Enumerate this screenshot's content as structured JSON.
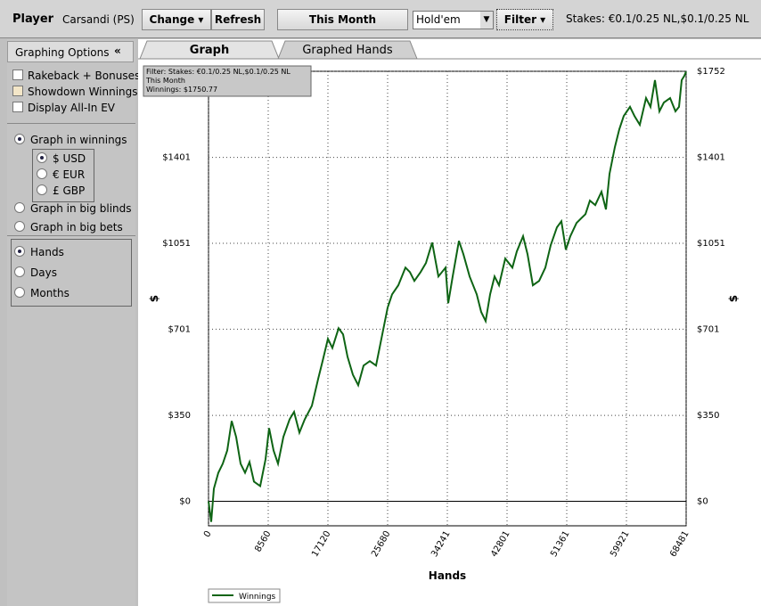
{
  "toolbar": {
    "player_label": "Player",
    "player_name": "Carsandi (PS)",
    "buttons": [
      "Change",
      "Refresh",
      "This Month"
    ],
    "game": "Hold'em",
    "filter": "Filter",
    "stakes": "Stakes: €0.1/0.25 NL,$0.1/0.25 NL"
  },
  "sidebar": {
    "title": "Graphing Options",
    "collapse": "«",
    "checkboxes": [
      "Rakeback + Bonuses",
      "Showdown Winnings",
      "Display All-In EV"
    ],
    "units": {
      "options": [
        "Graph in winnings",
        "Graph in big blinds",
        "Graph in big bets"
      ],
      "selected": 0
    },
    "currency": {
      "options": [
        "$ USD",
        "€ EUR",
        "£ GBP"
      ],
      "selected": 0
    },
    "axis": {
      "options": [
        "Hands",
        "Days",
        "Months"
      ],
      "selected": 0
    }
  },
  "tabs": {
    "items": [
      "Graph",
      "Graphed Hands"
    ],
    "selected": 0
  },
  "chart_data": {
    "type": "line",
    "xlabel": "Hands",
    "ylabel": "$",
    "annotations": [
      "Filter: Stakes: €0.1/0.25 NL,$0.1/0.25 NL",
      "This Month",
      "Winnings: $1750.77"
    ],
    "xlim": [
      0,
      68481
    ],
    "ylim": [
      -100,
      1752
    ],
    "xticks": [
      0,
      8560,
      17120,
      25680,
      34241,
      42801,
      51361,
      59921,
      68481
    ],
    "yticks": [
      {
        "value": 0,
        "label": "$0"
      },
      {
        "value": 350,
        "label": "$350"
      },
      {
        "value": 701,
        "label": "$701"
      },
      {
        "value": 1051,
        "label": "$1051"
      },
      {
        "value": 1401,
        "label": "$1401"
      },
      {
        "value": 1752,
        "label": "$1752"
      }
    ],
    "grid": true,
    "x": [
      0,
      383,
      767,
      1405,
      2044,
      2683,
      3322,
      3960,
      4599,
      5238,
      5877,
      6516,
      7410,
      8177,
      8688,
      9327,
      9966,
      10732,
      11627,
      12266,
      13032,
      13798,
      14820,
      15714,
      16353,
      17120,
      17759,
      18653,
      19292,
      19931,
      20697,
      21464,
      22230,
      23125,
      24019,
      24786,
      25680,
      26319,
      27213,
      28235,
      28874,
      29513,
      30407,
      31173,
      32068,
      32962,
      33984,
      34367,
      35006,
      35900,
      36539,
      37433,
      38455,
      39094,
      39733,
      40372,
      41011,
      41650,
      42544,
      43566,
      44205,
      45099,
      45738,
      46505,
      47399,
      48293,
      49060,
      49954,
      50593,
      51232,
      51871,
      52765,
      53404,
      54043,
      54681,
      55448,
      56342,
      56981,
      57492,
      58259,
      58897,
      59536,
      60431,
      61070,
      61837,
      62731,
      63370,
      64009,
      64647,
      65286,
      66181,
      66947,
      67458,
      67842,
      68225,
      68481
    ],
    "series": [
      {
        "name": "Winnings",
        "color": "#0e6414",
        "values": [
          0,
          -84,
          51,
          116,
          153,
          207,
          327,
          262,
          153,
          116,
          160,
          80,
          62,
          171,
          298,
          207,
          153,
          262,
          334,
          364,
          280,
          334,
          389,
          498,
          571,
          662,
          625,
          705,
          680,
          589,
          516,
          473,
          553,
          571,
          553,
          662,
          789,
          843,
          880,
          952,
          934,
          898,
          934,
          971,
          1054,
          916,
          952,
          807,
          916,
          1061,
          1007,
          916,
          843,
          771,
          734,
          843,
          916,
          880,
          989,
          952,
          1018,
          1080,
          1007,
          880,
          898,
          952,
          1043,
          1116,
          1141,
          1025,
          1080,
          1134,
          1152,
          1170,
          1225,
          1207,
          1261,
          1189,
          1334,
          1443,
          1516,
          1570,
          1607,
          1570,
          1534,
          1643,
          1607,
          1716,
          1589,
          1625,
          1643,
          1589,
          1607,
          1716,
          1734,
          1750.77
        ]
      }
    ]
  }
}
